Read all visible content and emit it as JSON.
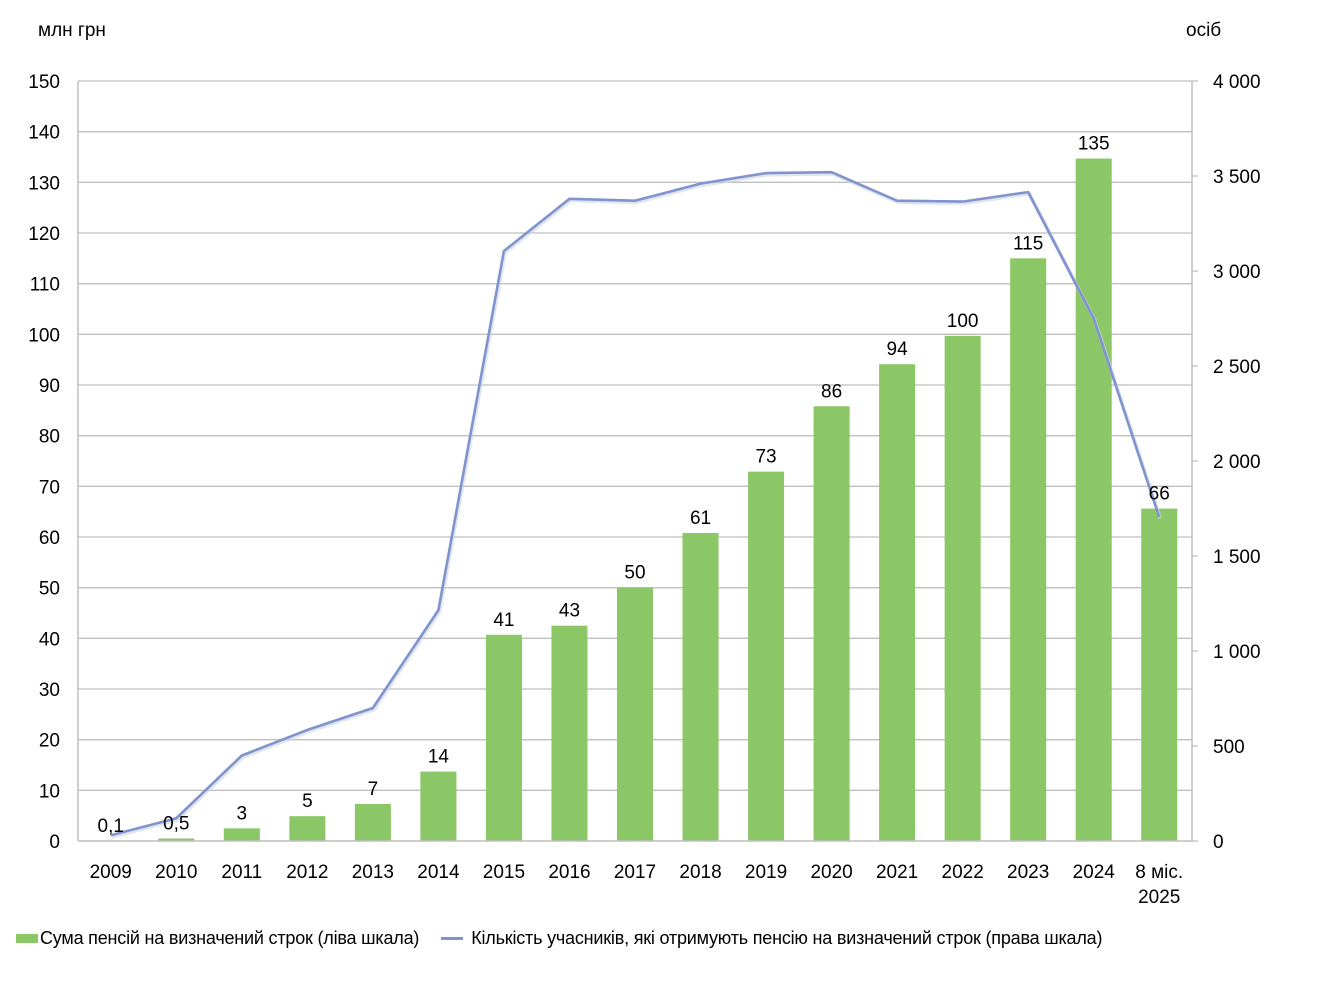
{
  "colors": {
    "bar": "#8BC766",
    "line": "#7F94CE",
    "grid": "#BFBFBF",
    "text": "#000000"
  },
  "chart_data": {
    "type": "bar",
    "title": "",
    "left_axis_unit": "млн грн",
    "right_axis_unit": "осіб",
    "categories": [
      "2009",
      "2010",
      "2011",
      "2012",
      "2013",
      "2014",
      "2015",
      "2016",
      "2017",
      "2018",
      "2019",
      "2020",
      "2021",
      "2022",
      "2023",
      "2024",
      "8 міс. 2025"
    ],
    "category_lines": [
      [
        "2009"
      ],
      [
        "2010"
      ],
      [
        "2011"
      ],
      [
        "2012"
      ],
      [
        "2013"
      ],
      [
        "2014"
      ],
      [
        "2015"
      ],
      [
        "2016"
      ],
      [
        "2017"
      ],
      [
        "2018"
      ],
      [
        "2019"
      ],
      [
        "2020"
      ],
      [
        "2021"
      ],
      [
        "2022"
      ],
      [
        "2023"
      ],
      [
        "2024"
      ],
      [
        "8 міс.",
        "2025"
      ]
    ],
    "ylim_left": [
      0,
      150
    ],
    "ylim_right": [
      0,
      4000
    ],
    "left_ticks": [
      "0",
      "10",
      "20",
      "30",
      "40",
      "50",
      "60",
      "70",
      "80",
      "90",
      "100",
      "110",
      "120",
      "130",
      "140",
      "150"
    ],
    "left_tick_values": [
      0,
      10,
      20,
      30,
      40,
      50,
      60,
      70,
      80,
      90,
      100,
      110,
      120,
      130,
      140,
      150
    ],
    "right_ticks": [
      "0",
      "500",
      "1 000",
      "1 500",
      "2 000",
      "2 500",
      "3 000",
      "3 500",
      "4 000"
    ],
    "right_tick_values": [
      0,
      500,
      1000,
      1500,
      2000,
      2500,
      3000,
      3500,
      4000
    ],
    "grid": true,
    "series": [
      {
        "name": "Сума пенсій на визначений строк (ліва шкала)",
        "type": "bar",
        "axis": "left",
        "values": [
          0.1,
          0.5,
          2.5,
          4.9,
          7.3,
          13.7,
          40.7,
          42.5,
          50,
          60.8,
          72.9,
          85.8,
          94.1,
          99.7,
          115,
          134.7,
          65.6
        ],
        "labels": [
          "0,1",
          "0,5",
          "3",
          "5",
          "7",
          "14",
          "41",
          "43",
          "50",
          "61",
          "73",
          "86",
          "94",
          "100",
          "115",
          "135",
          "66"
        ]
      },
      {
        "name": "Кількість учасників, які отримують пенсію на визначений строк (права шкала)",
        "type": "line",
        "axis": "right",
        "values": [
          30,
          120,
          450,
          585,
          700,
          1215,
          3105,
          3380,
          3370,
          3460,
          3515,
          3520,
          3370,
          3365,
          3415,
          2750,
          1705
        ]
      }
    ],
    "legend_position": "bottom"
  }
}
